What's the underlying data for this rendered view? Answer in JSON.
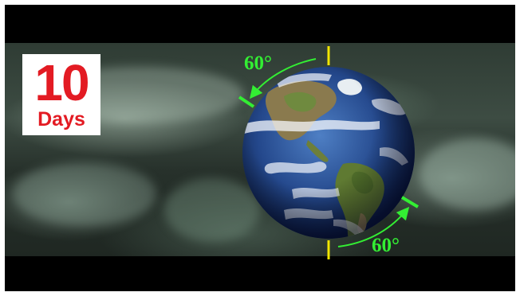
{
  "badge": {
    "number": "10",
    "label": "Days",
    "background": "#ffffff",
    "text_color": "#e31b23"
  },
  "rotation": {
    "top_angle": "60°",
    "bottom_angle": "60°",
    "arrow_color": "#33ee33",
    "axis_marker_color": "#f2e600"
  },
  "scene": {
    "subject": "earth-globe",
    "background": "cloud-layer"
  }
}
